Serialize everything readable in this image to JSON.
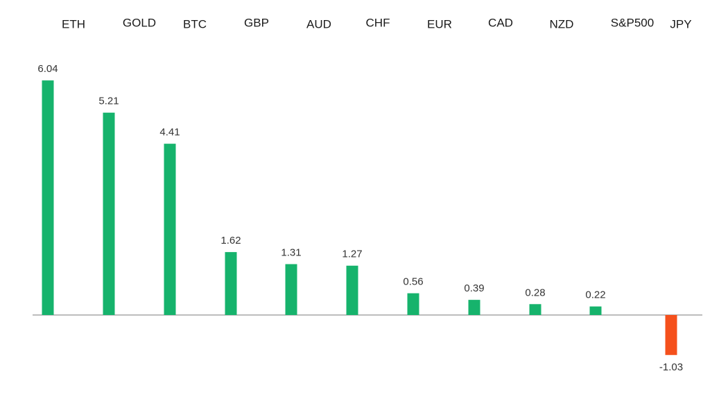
{
  "chart_data": {
    "type": "bar",
    "categories": [
      "ETH",
      "GOLD",
      "BTC",
      "GBP",
      "AUD",
      "CHF",
      "EUR",
      "CAD",
      "NZD",
      "S&P500",
      "JPY"
    ],
    "values": [
      6.04,
      5.21,
      4.41,
      1.62,
      1.31,
      1.27,
      0.56,
      0.39,
      0.28,
      0.22,
      -1.03
    ],
    "color": "#16b36c",
    "negative_color": "#f5501c"
  }
}
